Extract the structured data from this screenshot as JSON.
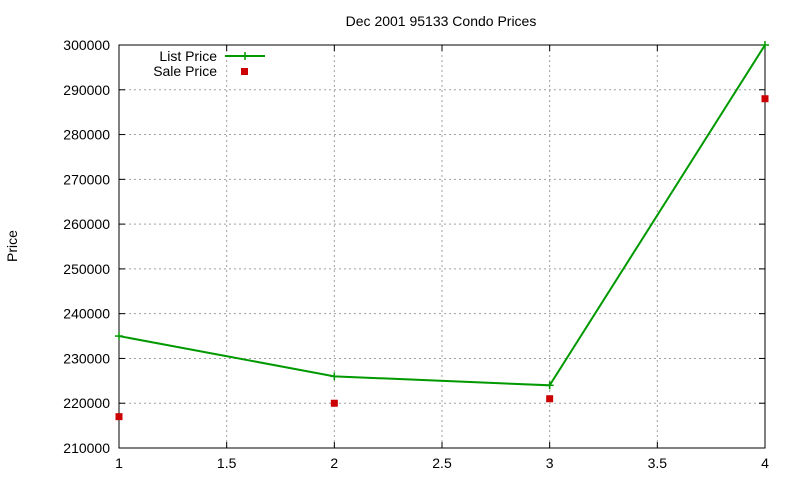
{
  "chart_data": {
    "type": "line",
    "title": "Dec 2001 95133 Condo Prices",
    "xlabel": "",
    "ylabel": "Price",
    "xlim": [
      1,
      4
    ],
    "ylim": [
      210000,
      300000
    ],
    "x_ticks": [
      "1",
      "1.5",
      "2",
      "2.5",
      "3",
      "3.5",
      "4"
    ],
    "y_ticks": [
      "210000",
      "220000",
      "230000",
      "240000",
      "250000",
      "260000",
      "270000",
      "280000",
      "290000",
      "300000"
    ],
    "grid": true,
    "legend_position": "top-left",
    "series": [
      {
        "name": "List Price",
        "style": "line-with-markers",
        "marker": "plus",
        "color": "#009900",
        "x": [
          1,
          2,
          3,
          4
        ],
        "y": [
          235000,
          226000,
          224000,
          300000
        ]
      },
      {
        "name": "Sale Price",
        "style": "points",
        "marker": "square",
        "color": "#cc0000",
        "x": [
          1,
          2,
          3,
          4
        ],
        "y": [
          217000,
          220000,
          221000,
          288000
        ]
      }
    ]
  }
}
